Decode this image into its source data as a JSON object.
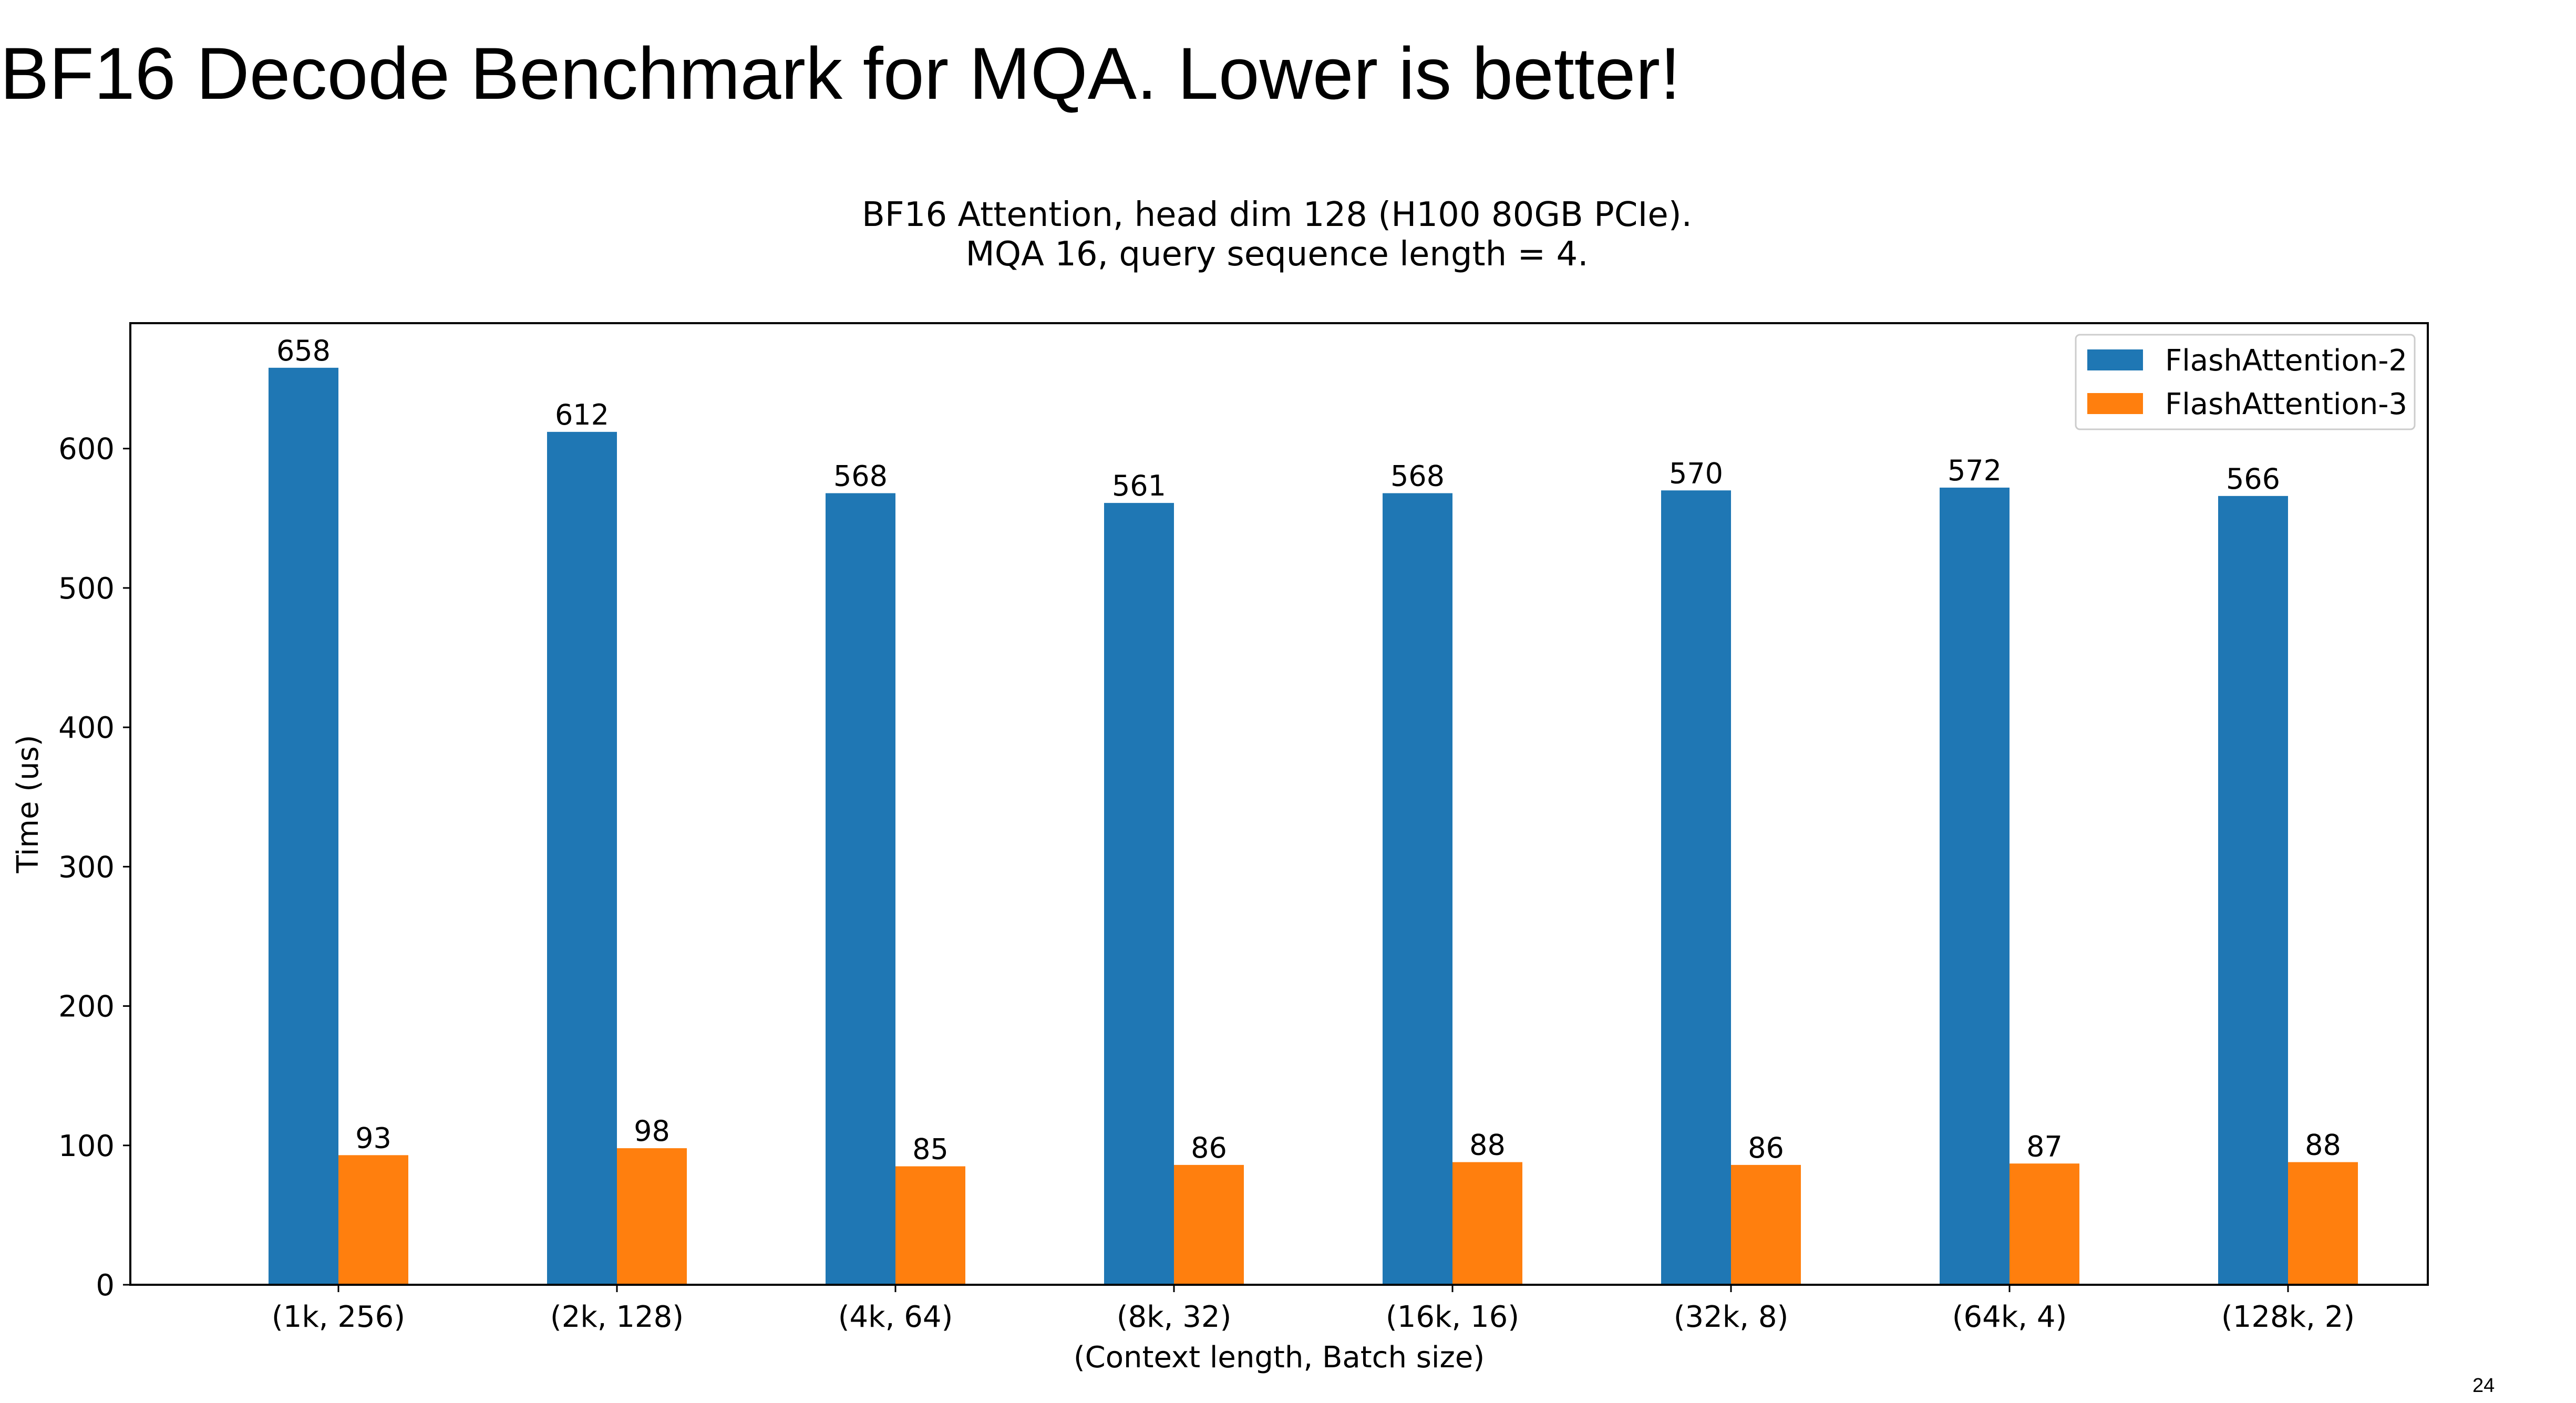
{
  "slide": {
    "title": "BF16 Decode Benchmark for MQA. Lower is better!",
    "page_number": "24"
  },
  "chart_data": {
    "type": "bar",
    "title": "BF16 Attention, head dim 128 (H100 80GB PCIe).",
    "subtitle": "MQA 16, query sequence length = 4.",
    "xlabel": "(Context length, Batch size)",
    "ylabel": "Time (us)",
    "ylim": [
      0,
      690
    ],
    "yticks": [
      0,
      100,
      200,
      300,
      400,
      500,
      600
    ],
    "categories": [
      "(1k, 256)",
      "(2k, 128)",
      "(4k, 64)",
      "(8k, 32)",
      "(16k, 16)",
      "(32k, 8)",
      "(64k, 4)",
      "(128k, 2)"
    ],
    "series": [
      {
        "name": "FlashAttention-2",
        "color": "#1f77b4",
        "values": [
          658,
          612,
          568,
          561,
          568,
          570,
          572,
          566
        ]
      },
      {
        "name": "FlashAttention-3",
        "color": "#ff7f0e",
        "values": [
          93,
          98,
          85,
          86,
          88,
          86,
          87,
          88
        ]
      }
    ],
    "legend": "top-right",
    "grid": false,
    "data_labels": true
  }
}
